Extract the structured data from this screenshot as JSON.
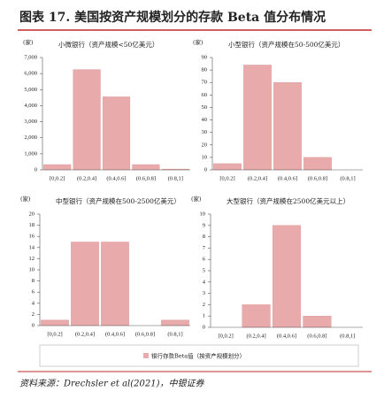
{
  "header": {
    "title": "图表 17. 美国按资产规模划分的存款 Beta 值分布情况"
  },
  "chart_data": [
    {
      "type": "bar",
      "title": "小微银行（资产规模<50亿美元）",
      "unit": "(家)",
      "categories": [
        "[0,0.2]",
        "(0.2,0.4]",
        "(0.4,0.6]",
        "(0.6,0.8]",
        "(0.8,1]"
      ],
      "values": [
        330,
        6250,
        4550,
        330,
        50
      ],
      "color": "#e8aaaa",
      "ylim": [
        0,
        7000
      ],
      "yticks": [
        0,
        {
          "value": 1000,
          "label": "1,000"
        },
        {
          "value": 2000,
          "label": "2,000"
        },
        {
          "value": 3000,
          "label": "3,000"
        },
        {
          "value": 4000,
          "label": "4,000"
        },
        {
          "value": 5000,
          "label": "5,000"
        },
        {
          "value": 6000,
          "label": "6,000"
        },
        {
          "value": 7000,
          "label": "7,000"
        }
      ]
    },
    {
      "type": "bar",
      "title": "小型银行（资产规模在50-500亿美元）",
      "unit": "(家)",
      "categories": [
        "[0,0.2]",
        "(0.2,0.4]",
        "(0.4,0.6]",
        "(0.6,0.8]",
        "(0.8,1]"
      ],
      "values": [
        5,
        84,
        70,
        10,
        0
      ],
      "color": "#e8aaaa",
      "ylim": [
        0,
        90
      ],
      "yticks": [
        0,
        10,
        20,
        30,
        40,
        50,
        60,
        70,
        80,
        90
      ]
    },
    {
      "type": "bar",
      "title": "中型银行（资产规模在500-2500亿美元）",
      "unit": "(家)",
      "categories": [
        "[0,0.2]",
        "(0.2,0.4]",
        "(0.4,0.6]",
        "(0.6,0.8]",
        "(0.8,1]"
      ],
      "values": [
        1,
        15,
        15,
        0,
        1
      ],
      "color": "#e8aaaa",
      "ylim": [
        0,
        20
      ],
      "yticks": [
        0,
        2,
        4,
        6,
        8,
        10,
        12,
        14,
        16,
        18,
        20
      ]
    },
    {
      "type": "bar",
      "title": "大型银行（资产规模在2500亿美元以上）",
      "unit": "(家)",
      "categories": [
        "[0,0.2]",
        "(0.2,0.4]",
        "(0.4,0.6]",
        "(0.6,0.8]",
        "(0.8,1]"
      ],
      "values": [
        0,
        2,
        9,
        1,
        0
      ],
      "color": "#e8aaaa",
      "ylim": [
        0,
        10
      ],
      "yticks": [
        0,
        1,
        2,
        3,
        4,
        5,
        6,
        7,
        8,
        9,
        10
      ]
    }
  ],
  "legend": {
    "label": "银行存款Beta值（按资产规模划分）",
    "color": "#e8aaaa"
  },
  "source": "资料来源：Drechsler et al(2021)，中银证券"
}
